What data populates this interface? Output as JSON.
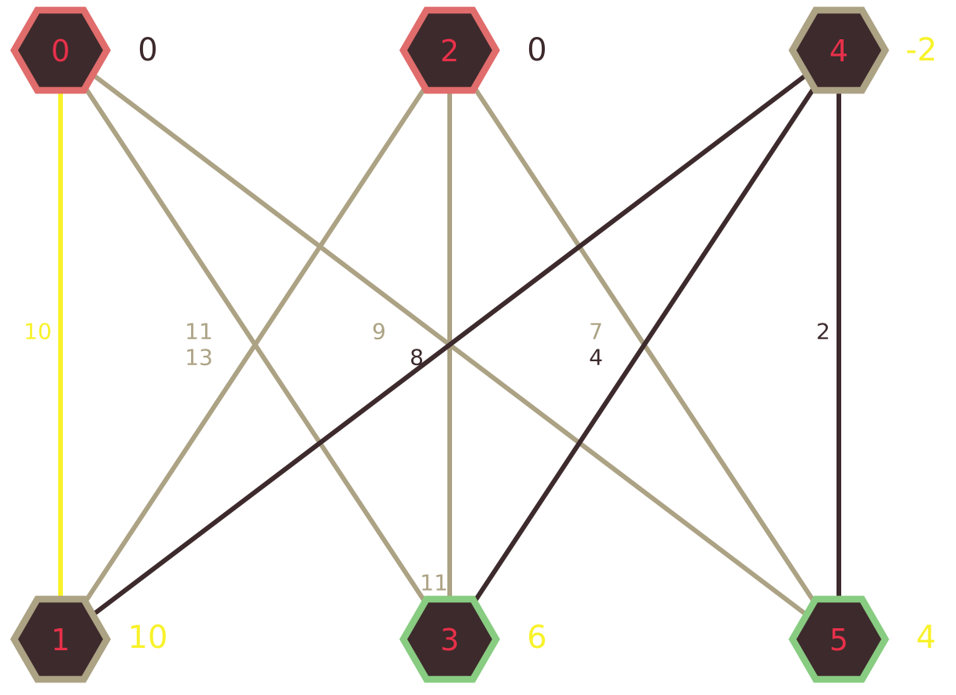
{
  "colors": {
    "node_fill": "#3d2a2c",
    "node_label": "#e8304a",
    "ring_red": "#e06c6c",
    "ring_tan": "#aca284",
    "ring_green": "#88cc82",
    "edge_tan": "#aca284",
    "edge_dark": "#3d2a2c",
    "edge_yellow": "#f8f22a",
    "value_dark": "#3d2a2c",
    "value_yellow": "#f8f22a"
  },
  "nodes": [
    {
      "id": "0",
      "label": "0",
      "value": "0",
      "ring": "ring_red",
      "value_color": "value_dark"
    },
    {
      "id": "2",
      "label": "2",
      "value": "0",
      "ring": "ring_red",
      "value_color": "value_dark"
    },
    {
      "id": "4",
      "label": "4",
      "value": "-2",
      "ring": "ring_tan",
      "value_color": "value_yellow"
    },
    {
      "id": "1",
      "label": "1",
      "value": "10",
      "ring": "ring_tan",
      "value_color": "value_yellow"
    },
    {
      "id": "3",
      "label": "3",
      "value": "6",
      "ring": "ring_green",
      "value_color": "value_yellow"
    },
    {
      "id": "5",
      "label": "5",
      "value": "4",
      "ring": "ring_green",
      "value_color": "value_yellow"
    }
  ],
  "edges": [
    {
      "from": "0",
      "to": "1",
      "weight": "10",
      "color": "edge_yellow"
    },
    {
      "from": "0",
      "to": "3",
      "weight": "11",
      "color": "edge_tan"
    },
    {
      "from": "0",
      "to": "5",
      "weight": "9",
      "color": "edge_tan"
    },
    {
      "from": "2",
      "to": "1",
      "weight": "13",
      "color": "edge_tan"
    },
    {
      "from": "2",
      "to": "3",
      "weight": "11",
      "color": "edge_tan"
    },
    {
      "from": "2",
      "to": "5",
      "weight": "7",
      "color": "edge_tan"
    },
    {
      "from": "4",
      "to": "1",
      "weight": "8",
      "color": "edge_dark"
    },
    {
      "from": "4",
      "to": "3",
      "weight": "4",
      "color": "edge_dark"
    },
    {
      "from": "4",
      "to": "5",
      "weight": "2",
      "color": "edge_dark"
    }
  ]
}
